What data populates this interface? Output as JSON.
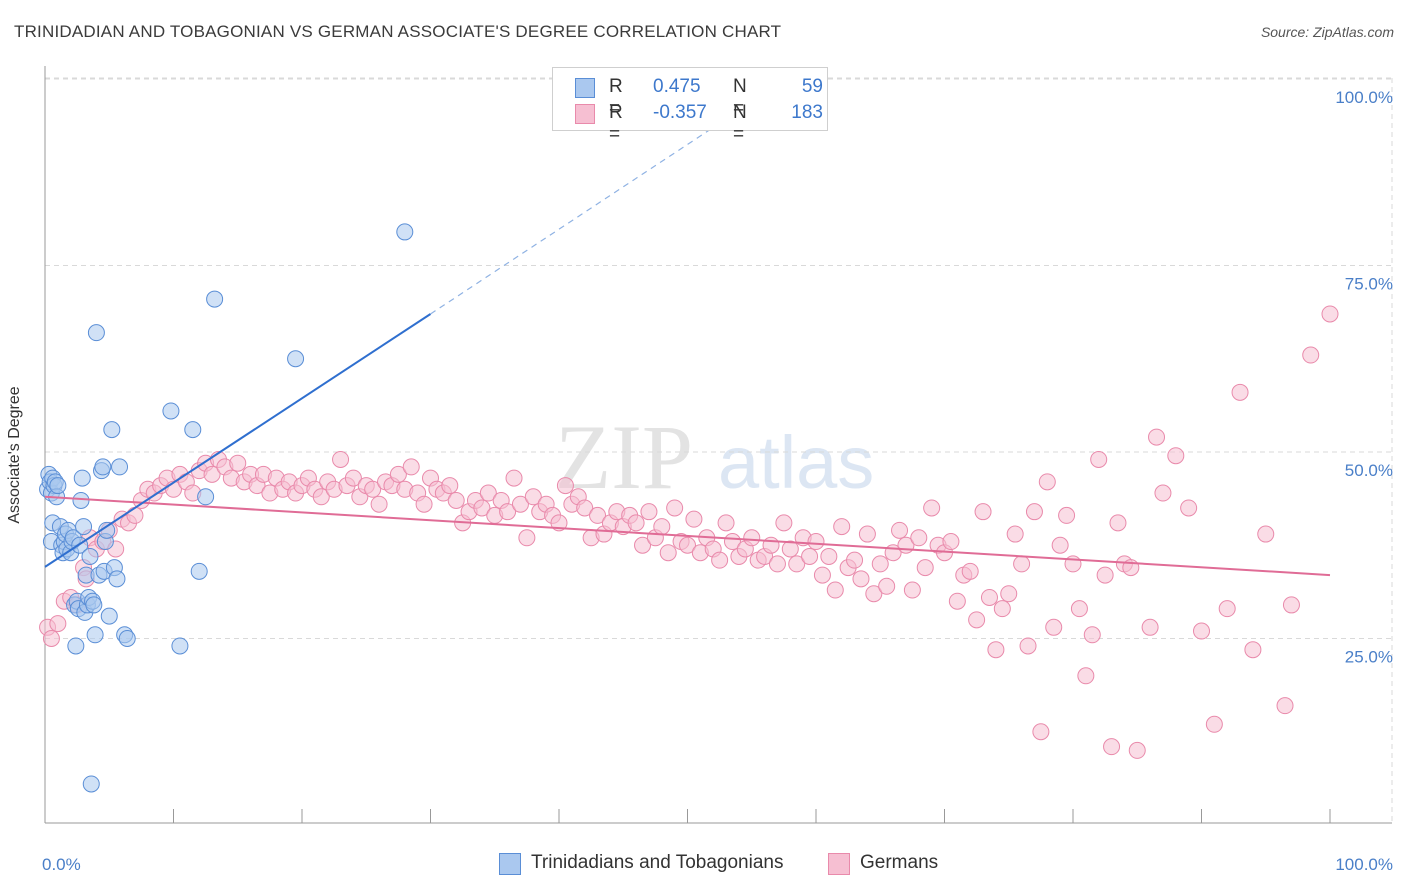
{
  "header": {
    "title": "TRINIDADIAN AND TOBAGONIAN VS GERMAN ASSOCIATE'S DEGREE CORRELATION CHART",
    "source": "Source: ZipAtlas.com"
  },
  "watermark": {
    "zip": "ZIP",
    "atlas": "atlas"
  },
  "colors": {
    "blue_fill": "#aac8ef",
    "blue_stroke": "#5a8ed6",
    "blue_line": "#2f6fcf",
    "pink_fill": "#f6bfd2",
    "pink_stroke": "#e98aab",
    "pink_line": "#e06c96",
    "tick_text": "#4a7fc8",
    "grid": "#d9d9d9"
  },
  "legend": {
    "rows": [
      {
        "r_label": "R =",
        "r_value": "0.475",
        "n_label": "N =",
        "n_value": "59",
        "series": "blue"
      },
      {
        "r_label": "R =",
        "r_value": "-0.357",
        "n_label": "N =",
        "n_value": "183",
        "series": "pink"
      }
    ]
  },
  "bottom_legend": [
    {
      "label": "Trinidadians and Tobagonians",
      "series": "blue"
    },
    {
      "label": "Germans",
      "series": "pink"
    }
  ],
  "chart_data": {
    "type": "scatter",
    "ylabel": "Associate's Degree",
    "xlabel": "",
    "xlim": [
      0,
      100
    ],
    "ylim": [
      0,
      100
    ],
    "x_tick_labels": [
      {
        "value": 0,
        "label": "0.0%"
      },
      {
        "value": 100,
        "label": "100.0%"
      }
    ],
    "y_tick_labels": [
      {
        "value": 25,
        "label": "25.0%"
      },
      {
        "value": 50,
        "label": "50.0%"
      },
      {
        "value": 75,
        "label": "75.0%"
      },
      {
        "value": 100,
        "label": "100.0%"
      }
    ],
    "grid": true,
    "series": [
      {
        "name": "Trinidadians and Tobagonians",
        "color": "blue",
        "trend": {
          "x": [
            0,
            30
          ],
          "y": [
            34.6,
            68.5
          ],
          "dashed_to": [
            52,
            93.5
          ]
        },
        "points": [
          [
            0.2,
            45.0
          ],
          [
            0.3,
            47.0
          ],
          [
            0.4,
            46.0
          ],
          [
            0.5,
            44.5
          ],
          [
            0.6,
            46.5
          ],
          [
            0.7,
            45.5
          ],
          [
            0.8,
            46.0
          ],
          [
            0.9,
            44.0
          ],
          [
            0.5,
            38.0
          ],
          [
            0.6,
            40.5
          ],
          [
            1.0,
            45.5
          ],
          [
            1.2,
            40.0
          ],
          [
            1.3,
            37.5
          ],
          [
            1.4,
            36.5
          ],
          [
            1.5,
            38.0
          ],
          [
            1.6,
            39.0
          ],
          [
            1.7,
            37.0
          ],
          [
            1.8,
            39.5
          ],
          [
            2.0,
            36.5
          ],
          [
            2.1,
            38.0
          ],
          [
            2.2,
            38.5
          ],
          [
            2.3,
            29.5
          ],
          [
            2.4,
            24.0
          ],
          [
            2.5,
            30.0
          ],
          [
            2.6,
            29.0
          ],
          [
            2.7,
            37.5
          ],
          [
            2.8,
            43.5
          ],
          [
            2.9,
            46.5
          ],
          [
            3.0,
            40.0
          ],
          [
            3.1,
            28.5
          ],
          [
            3.2,
            33.5
          ],
          [
            3.3,
            29.5
          ],
          [
            3.4,
            30.5
          ],
          [
            3.5,
            36.0
          ],
          [
            3.6,
            5.5
          ],
          [
            3.7,
            30.0
          ],
          [
            3.8,
            29.5
          ],
          [
            3.9,
            25.5
          ],
          [
            4.0,
            66.0
          ],
          [
            4.2,
            33.5
          ],
          [
            4.4,
            47.5
          ],
          [
            4.5,
            48.0
          ],
          [
            4.6,
            34.0
          ],
          [
            4.7,
            38.0
          ],
          [
            4.8,
            39.5
          ],
          [
            5.0,
            28.0
          ],
          [
            5.2,
            53.0
          ],
          [
            5.4,
            34.5
          ],
          [
            5.6,
            33.0
          ],
          [
            5.8,
            48.0
          ],
          [
            6.2,
            25.5
          ],
          [
            6.4,
            25.0
          ],
          [
            9.8,
            55.5
          ],
          [
            10.5,
            24.0
          ],
          [
            11.5,
            53.0
          ],
          [
            12.0,
            34.0
          ],
          [
            12.5,
            44.0
          ],
          [
            13.2,
            70.5
          ],
          [
            19.5,
            62.5
          ],
          [
            28.0,
            79.5
          ]
        ]
      },
      {
        "name": "Germans",
        "color": "pink",
        "trend": {
          "x": [
            0,
            100
          ],
          "y": [
            44.0,
            33.5
          ]
        },
        "points": [
          [
            0.2,
            26.5
          ],
          [
            0.5,
            25.0
          ],
          [
            1.0,
            27.0
          ],
          [
            1.5,
            30.0
          ],
          [
            2.0,
            30.5
          ],
          [
            2.5,
            29.5
          ],
          [
            3.0,
            34.5
          ],
          [
            3.2,
            33.0
          ],
          [
            3.5,
            38.5
          ],
          [
            4.0,
            37.0
          ],
          [
            4.5,
            38.0
          ],
          [
            5.0,
            39.5
          ],
          [
            5.5,
            37.0
          ],
          [
            6.0,
            41.0
          ],
          [
            6.5,
            40.5
          ],
          [
            7.0,
            41.5
          ],
          [
            7.5,
            43.5
          ],
          [
            8.0,
            45.0
          ],
          [
            8.5,
            44.5
          ],
          [
            9.0,
            45.5
          ],
          [
            9.5,
            46.5
          ],
          [
            10.0,
            45.0
          ],
          [
            10.5,
            47.0
          ],
          [
            11.0,
            46.0
          ],
          [
            11.5,
            44.5
          ],
          [
            12.0,
            47.5
          ],
          [
            12.5,
            48.5
          ],
          [
            13.0,
            47.0
          ],
          [
            13.5,
            49.0
          ],
          [
            14.0,
            48.0
          ],
          [
            14.5,
            46.5
          ],
          [
            15.0,
            48.5
          ],
          [
            15.5,
            46.0
          ],
          [
            16.0,
            47.0
          ],
          [
            16.5,
            45.5
          ],
          [
            17.0,
            47.0
          ],
          [
            17.5,
            44.5
          ],
          [
            18.0,
            46.5
          ],
          [
            18.5,
            45.0
          ],
          [
            19.0,
            46.0
          ],
          [
            19.5,
            44.5
          ],
          [
            20.0,
            45.5
          ],
          [
            20.5,
            46.5
          ],
          [
            21.0,
            45.0
          ],
          [
            21.5,
            44.0
          ],
          [
            22.0,
            46.0
          ],
          [
            22.5,
            45.0
          ],
          [
            23.0,
            49.0
          ],
          [
            23.5,
            45.5
          ],
          [
            24.0,
            46.5
          ],
          [
            24.5,
            44.0
          ],
          [
            25.0,
            45.5
          ],
          [
            25.5,
            45.0
          ],
          [
            26.0,
            43.0
          ],
          [
            26.5,
            46.0
          ],
          [
            27.0,
            45.5
          ],
          [
            27.5,
            47.0
          ],
          [
            28.0,
            45.0
          ],
          [
            28.5,
            48.0
          ],
          [
            29.0,
            44.5
          ],
          [
            29.5,
            43.0
          ],
          [
            30.0,
            46.5
          ],
          [
            30.5,
            45.0
          ],
          [
            31.0,
            44.5
          ],
          [
            31.5,
            45.5
          ],
          [
            32.0,
            43.5
          ],
          [
            32.5,
            40.5
          ],
          [
            33.0,
            42.0
          ],
          [
            33.5,
            43.5
          ],
          [
            34.0,
            42.5
          ],
          [
            34.5,
            44.5
          ],
          [
            35.0,
            41.5
          ],
          [
            35.5,
            43.5
          ],
          [
            36.0,
            42.0
          ],
          [
            36.5,
            46.5
          ],
          [
            37.0,
            43.0
          ],
          [
            37.5,
            38.5
          ],
          [
            38.0,
            44.0
          ],
          [
            38.5,
            42.0
          ],
          [
            39.0,
            43.0
          ],
          [
            39.5,
            41.5
          ],
          [
            40.0,
            40.5
          ],
          [
            40.5,
            45.5
          ],
          [
            41.0,
            43.0
          ],
          [
            41.5,
            44.0
          ],
          [
            42.0,
            42.5
          ],
          [
            42.5,
            38.5
          ],
          [
            43.0,
            41.5
          ],
          [
            43.5,
            39.0
          ],
          [
            44.0,
            40.5
          ],
          [
            44.5,
            42.0
          ],
          [
            45.0,
            40.0
          ],
          [
            45.5,
            41.5
          ],
          [
            46.0,
            40.5
          ],
          [
            46.5,
            37.5
          ],
          [
            47.0,
            42.0
          ],
          [
            47.5,
            38.5
          ],
          [
            48.0,
            40.0
          ],
          [
            48.5,
            36.5
          ],
          [
            49.0,
            42.5
          ],
          [
            49.5,
            38.0
          ],
          [
            50.0,
            37.5
          ],
          [
            50.5,
            41.0
          ],
          [
            51.0,
            36.5
          ],
          [
            51.5,
            38.5
          ],
          [
            52.0,
            37.0
          ],
          [
            52.5,
            35.5
          ],
          [
            53.0,
            40.5
          ],
          [
            53.5,
            38.0
          ],
          [
            54.0,
            36.0
          ],
          [
            54.5,
            37.0
          ],
          [
            55.0,
            38.5
          ],
          [
            55.5,
            35.5
          ],
          [
            56.0,
            36.0
          ],
          [
            56.5,
            37.5
          ],
          [
            57.0,
            35.0
          ],
          [
            57.5,
            40.5
          ],
          [
            58.0,
            37.0
          ],
          [
            58.5,
            35.0
          ],
          [
            59.0,
            38.5
          ],
          [
            59.5,
            36.0
          ],
          [
            60.0,
            38.0
          ],
          [
            60.5,
            33.5
          ],
          [
            61.0,
            36.0
          ],
          [
            61.5,
            31.5
          ],
          [
            62.0,
            40.0
          ],
          [
            62.5,
            34.5
          ],
          [
            63.0,
            35.5
          ],
          [
            63.5,
            33.0
          ],
          [
            64.0,
            39.0
          ],
          [
            64.5,
            31.0
          ],
          [
            65.0,
            35.0
          ],
          [
            65.5,
            32.0
          ],
          [
            66.0,
            36.5
          ],
          [
            66.5,
            39.5
          ],
          [
            67.0,
            37.5
          ],
          [
            67.5,
            31.5
          ],
          [
            68.0,
            38.5
          ],
          [
            68.5,
            34.5
          ],
          [
            69.0,
            42.5
          ],
          [
            69.5,
            37.5
          ],
          [
            70.0,
            36.5
          ],
          [
            70.5,
            38.0
          ],
          [
            71.0,
            30.0
          ],
          [
            71.5,
            33.5
          ],
          [
            72.0,
            34.0
          ],
          [
            72.5,
            27.5
          ],
          [
            73.0,
            42.0
          ],
          [
            73.5,
            30.5
          ],
          [
            74.0,
            23.5
          ],
          [
            74.5,
            29.0
          ],
          [
            75.0,
            31.0
          ],
          [
            75.5,
            39.0
          ],
          [
            76.0,
            35.0
          ],
          [
            76.5,
            24.0
          ],
          [
            77.0,
            42.0
          ],
          [
            77.5,
            12.5
          ],
          [
            78.0,
            46.0
          ],
          [
            78.5,
            26.5
          ],
          [
            79.0,
            37.5
          ],
          [
            79.5,
            41.5
          ],
          [
            80.0,
            35.0
          ],
          [
            80.5,
            29.0
          ],
          [
            81.0,
            20.0
          ],
          [
            81.5,
            25.5
          ],
          [
            82.0,
            49.0
          ],
          [
            82.5,
            33.5
          ],
          [
            83.0,
            10.5
          ],
          [
            83.5,
            40.5
          ],
          [
            84.0,
            35.0
          ],
          [
            84.5,
            34.5
          ],
          [
            85.0,
            10.0
          ],
          [
            86.0,
            26.5
          ],
          [
            86.5,
            52.0
          ],
          [
            87.0,
            44.5
          ],
          [
            88.0,
            49.5
          ],
          [
            89.0,
            42.5
          ],
          [
            90.0,
            26.0
          ],
          [
            91.0,
            13.5
          ],
          [
            92.0,
            29.0
          ],
          [
            93.0,
            58.0
          ],
          [
            94.0,
            23.5
          ],
          [
            95.0,
            39.0
          ],
          [
            96.5,
            16.0
          ],
          [
            97.0,
            29.5
          ],
          [
            98.5,
            63.0
          ],
          [
            100.0,
            68.5
          ]
        ]
      }
    ]
  }
}
